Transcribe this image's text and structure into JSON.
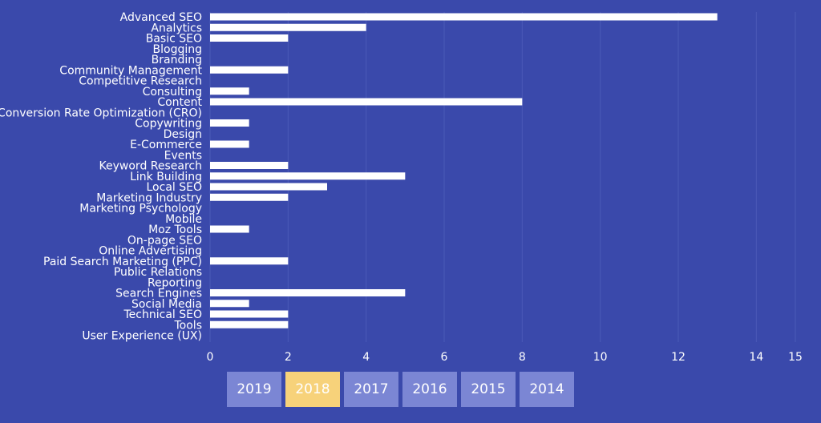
{
  "colors": {
    "background": "#3a49ab",
    "bar": "#ffffff",
    "gridline": "#4b5ab7",
    "tab": "#7b86d4",
    "tab_active": "#f7d27a",
    "text": "#ffffff"
  },
  "year_tabs": {
    "items": [
      "2019",
      "2018",
      "2017",
      "2016",
      "2015",
      "2014"
    ],
    "selected": "2018"
  },
  "chart_data": {
    "type": "bar",
    "orientation": "horizontal",
    "title": "",
    "xlabel": "",
    "ylabel": "",
    "xlim": [
      0,
      15
    ],
    "x_ticks": [
      0,
      2,
      4,
      6,
      8,
      10,
      12,
      14,
      15
    ],
    "grid": true,
    "categories": [
      "Advanced SEO",
      "Analytics",
      "Basic SEO",
      "Blogging",
      "Branding",
      "Community Management",
      "Competitive Research",
      "Consulting",
      "Content",
      "Conversion Rate Optimization (CRO)",
      "Copywriting",
      "Design",
      "E-Commerce",
      "Events",
      "Keyword Research",
      "Link Building",
      "Local SEO",
      "Marketing Industry",
      "Marketing Psychology",
      "Mobile",
      "Moz Tools",
      "On-page SEO",
      "Online Advertising",
      "Paid Search Marketing (PPC)",
      "Public Relations",
      "Reporting",
      "Search Engines",
      "Social Media",
      "Technical SEO",
      "Tools",
      "User Experience (UX)"
    ],
    "values": [
      13,
      4,
      2,
      0,
      0,
      2,
      0,
      1,
      8,
      0,
      1,
      0,
      1,
      0,
      2,
      5,
      3,
      2,
      0,
      0,
      1,
      0,
      0,
      2,
      0,
      0,
      5,
      1,
      2,
      2,
      0
    ]
  }
}
